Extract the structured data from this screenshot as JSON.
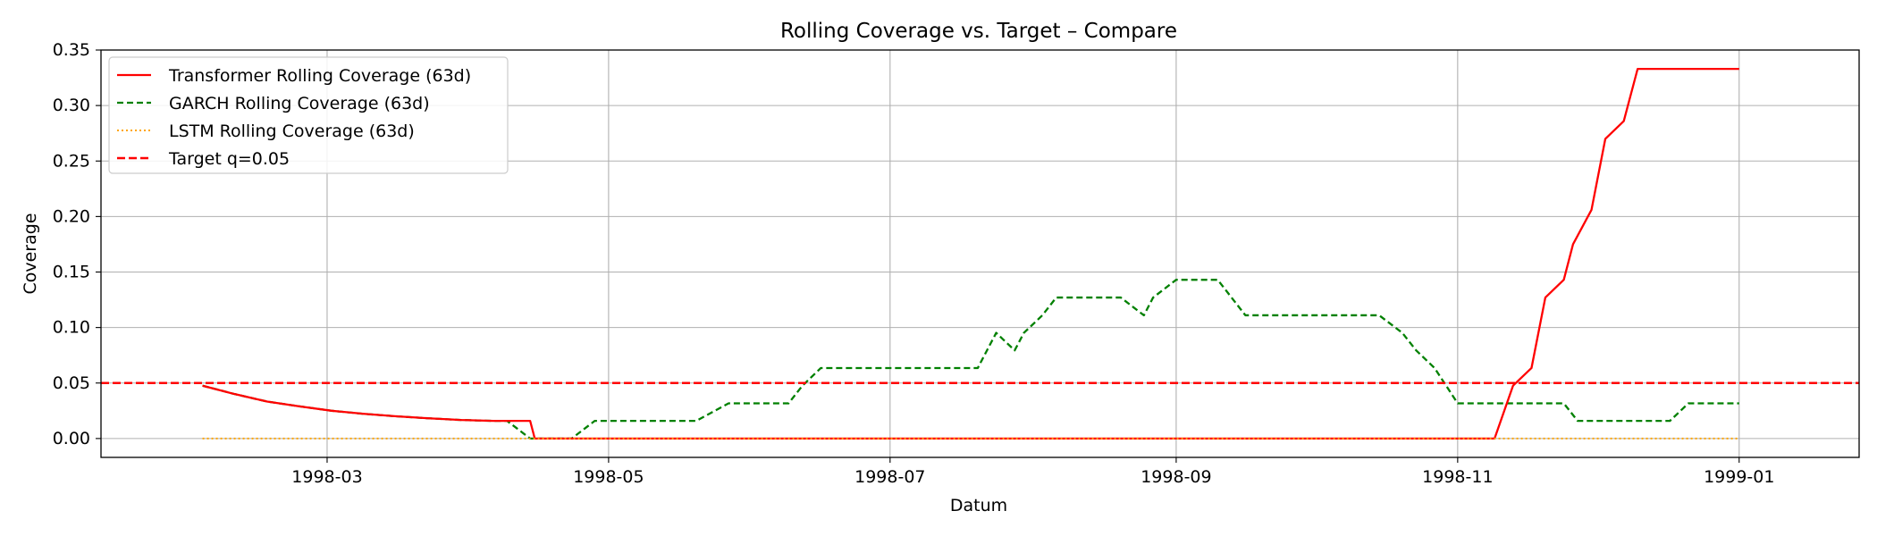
{
  "chart_data": {
    "type": "line",
    "title": "Rolling Coverage vs. Target – Compare",
    "xlabel": "Datum",
    "ylabel": "Coverage",
    "xlim": [
      "1998-01-11",
      "1999-01-27"
    ],
    "ylim": [
      -0.017,
      0.35
    ],
    "xticks": [
      "1998-03-01",
      "1998-05-01",
      "1998-07-01",
      "1998-09-01",
      "1998-11-01",
      "1999-01-01"
    ],
    "xtick_labels": [
      "1998-03",
      "1998-05",
      "1998-07",
      "1998-09",
      "1998-11",
      "1999-01"
    ],
    "yticks": [
      0.0,
      0.05,
      0.1,
      0.15,
      0.2,
      0.25,
      0.3,
      0.35
    ],
    "ytick_labels": [
      "0.00",
      "0.05",
      "0.10",
      "0.15",
      "0.20",
      "0.25",
      "0.30",
      "0.35"
    ],
    "grid": true,
    "legend_position": "top-left",
    "series": [
      {
        "name": "Transformer Rolling Coverage (63d)",
        "color": "#ff0000",
        "style": "solid",
        "x": [
          "1998-02-02",
          "1998-02-09",
          "1998-02-16",
          "1998-02-23",
          "1998-03-02",
          "1998-03-09",
          "1998-03-16",
          "1998-03-23",
          "1998-03-30",
          "1998-04-06",
          "1998-04-13",
          "1998-04-14",
          "1998-04-15",
          "1998-04-20",
          "1998-05-01",
          "1998-07-01",
          "1998-09-01",
          "1998-11-09",
          "1998-11-13",
          "1998-11-17",
          "1998-11-20",
          "1998-11-24",
          "1998-11-26",
          "1998-11-30",
          "1998-12-03",
          "1998-12-07",
          "1998-12-10",
          "1999-01-01"
        ],
        "y": [
          0.0476,
          0.04,
          0.0333,
          0.029,
          0.025,
          0.0222,
          0.02,
          0.0182,
          0.0167,
          0.0159,
          0.0159,
          0.0159,
          0.0,
          0.0,
          0.0,
          0.0,
          0.0,
          0.0,
          0.0476,
          0.0635,
          0.127,
          0.143,
          0.175,
          0.206,
          0.27,
          0.286,
          0.333,
          0.333
        ]
      },
      {
        "name": "GARCH Rolling Coverage (63d)",
        "color": "#008000",
        "style": "dashed",
        "x": [
          "1998-02-02",
          "1998-02-09",
          "1998-02-16",
          "1998-02-23",
          "1998-03-02",
          "1998-03-09",
          "1998-03-16",
          "1998-03-23",
          "1998-03-30",
          "1998-04-06",
          "1998-04-09",
          "1998-04-14",
          "1998-04-23",
          "1998-04-28",
          "1998-05-20",
          "1998-05-27",
          "1998-06-09",
          "1998-06-12",
          "1998-06-16",
          "1998-07-20",
          "1998-07-22",
          "1998-07-24",
          "1998-07-28",
          "1998-07-30",
          "1998-08-03",
          "1998-08-06",
          "1998-08-20",
          "1998-08-25",
          "1998-08-27",
          "1998-09-01",
          "1998-09-10",
          "1998-09-16",
          "1998-10-15",
          "1998-10-20",
          "1998-10-23",
          "1998-10-27",
          "1998-11-01",
          "1998-11-24",
          "1998-11-27",
          "1998-12-17",
          "1998-12-21",
          "1999-01-01"
        ],
        "y": [
          0.0476,
          0.04,
          0.0333,
          0.029,
          0.025,
          0.0222,
          0.02,
          0.0182,
          0.0167,
          0.0159,
          0.0159,
          0.0,
          0.0,
          0.0159,
          0.0159,
          0.0317,
          0.0317,
          0.0476,
          0.0635,
          0.0635,
          0.0794,
          0.0952,
          0.0794,
          0.0952,
          0.111,
          0.127,
          0.127,
          0.111,
          0.127,
          0.143,
          0.143,
          0.111,
          0.111,
          0.0952,
          0.0794,
          0.0635,
          0.0317,
          0.0317,
          0.0159,
          0.0159,
          0.0317,
          0.0317
        ]
      },
      {
        "name": "LSTM Rolling Coverage (63d)",
        "color": "#ffa500",
        "style": "dotted",
        "x": [
          "1998-02-02",
          "1999-01-01"
        ],
        "y": [
          0.0,
          0.0
        ]
      },
      {
        "name": "Target q=0.05",
        "color": "#ff0000",
        "style": "dashed-thick",
        "hline": 0.05
      }
    ]
  }
}
